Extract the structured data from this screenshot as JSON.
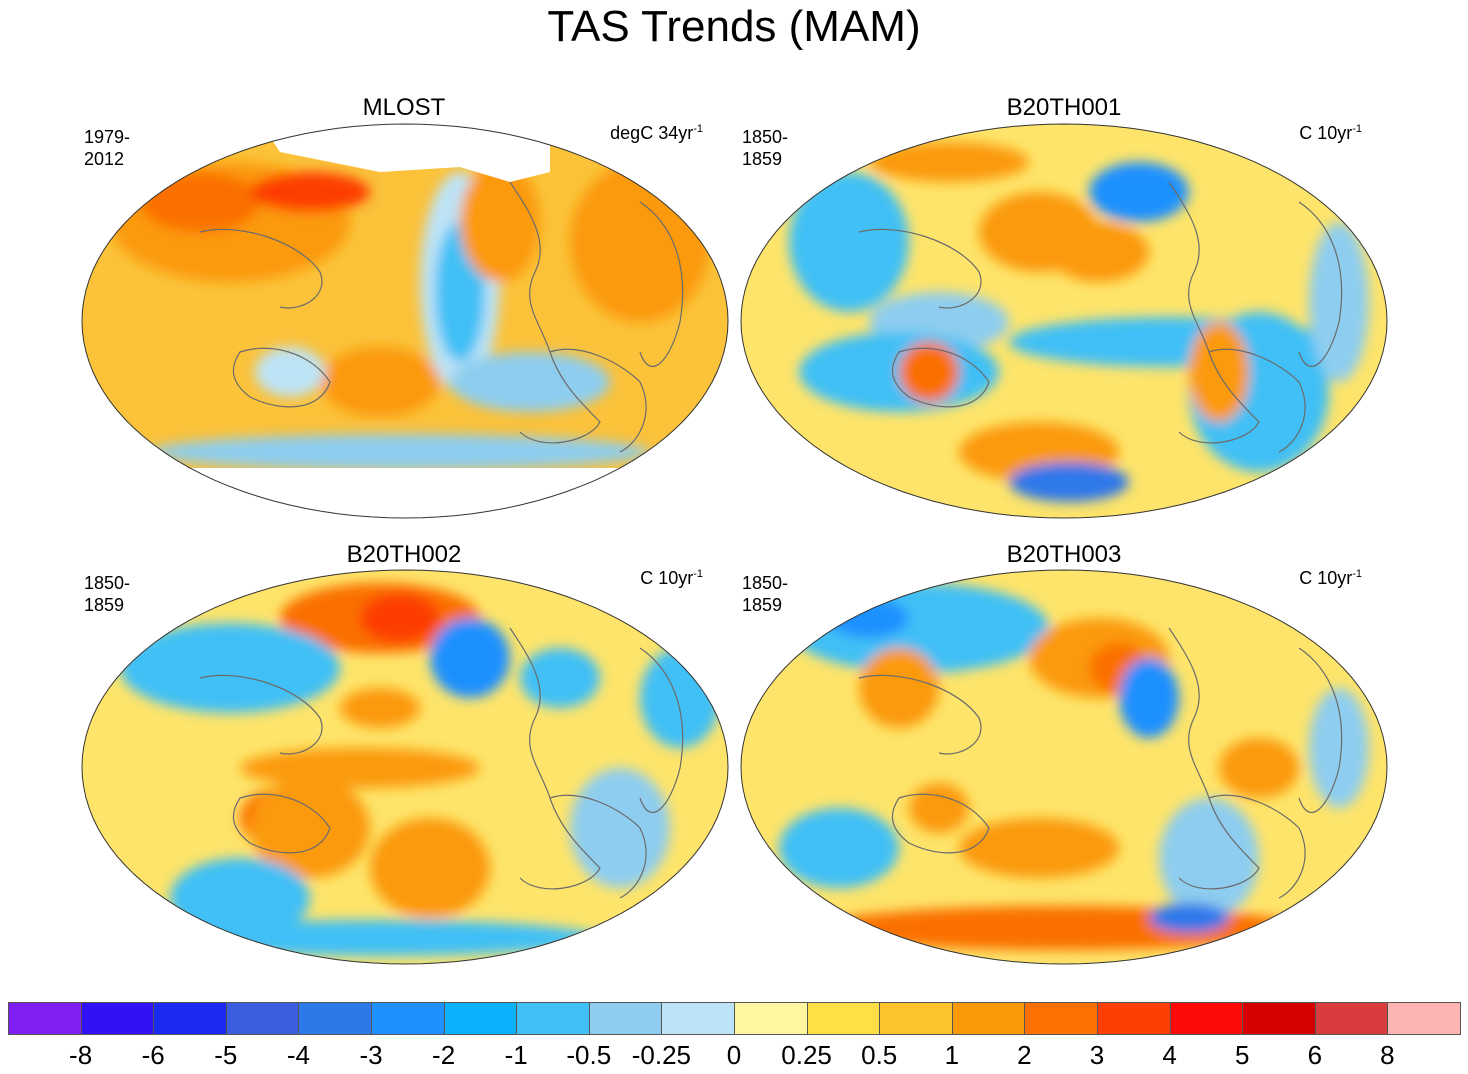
{
  "title": "TAS Trends (MAM)",
  "panels": [
    {
      "title": "MLOST",
      "period": "1979-2012",
      "units_text": "degC 34yr",
      "units_exp": "-1",
      "base": "#fbc23a",
      "missing_polar": true
    },
    {
      "title": "B20TH001",
      "period": "1850-1859",
      "units_text": "C 10yr",
      "units_exp": "-1",
      "base": "#fee46a",
      "missing_polar": false
    },
    {
      "title": "B20TH002",
      "period": "1850-1859",
      "units_text": "C 10yr",
      "units_exp": "-1",
      "base": "#fee46a",
      "missing_polar": false
    },
    {
      "title": "B20TH003",
      "period": "1850-1859",
      "units_text": "C 10yr",
      "units_exp": "-1",
      "base": "#fee46a",
      "missing_polar": false
    }
  ],
  "colorbar": {
    "colors": [
      "#7f1ff2",
      "#3311f7",
      "#1a2af0",
      "#3b5ee0",
      "#2f78ea",
      "#1e90ff",
      "#0bb2fb",
      "#40c0f6",
      "#8ecdef",
      "#bde3f6",
      "#fff7a0",
      "#fee046",
      "#fcc32c",
      "#fb9a09",
      "#fa7003",
      "#fd3e05",
      "#fc0a06",
      "#d70000",
      "#d83c3c",
      "#ffb4b4"
    ],
    "labels": [
      "-8",
      "-6",
      "-5",
      "-4",
      "-3",
      "-2",
      "-1",
      "-0.5",
      "-0.25",
      "0",
      "0.25",
      "0.5",
      "1",
      "2",
      "3",
      "4",
      "5",
      "6",
      "8"
    ]
  }
}
